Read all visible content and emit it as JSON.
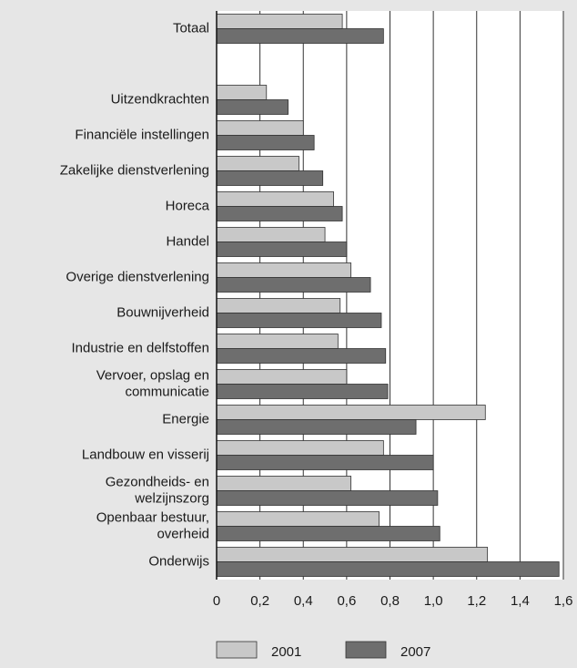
{
  "chart_data": {
    "type": "bar",
    "orientation": "horizontal",
    "categories": [
      "Totaal",
      null,
      "Uitzendkrachten",
      "Financiële instellingen",
      "Zakelijke dienstverlening",
      "Horeca",
      "Handel",
      "Overige dienstverlening",
      "Bouwnijverheid",
      "Industrie en delfstoffen",
      [
        "Vervoer, opslag en",
        "communicatie"
      ],
      "Energie",
      "Landbouw en visserij",
      [
        "Gezondheids- en",
        "welzijnszorg"
      ],
      [
        "Openbaar bestuur,",
        "overheid"
      ],
      "Onderwijs"
    ],
    "series": [
      {
        "name": "2001",
        "color": "#c8c8c8",
        "values": [
          0.58,
          null,
          0.23,
          0.4,
          0.38,
          0.54,
          0.5,
          0.62,
          0.57,
          0.56,
          0.6,
          1.24,
          0.77,
          0.62,
          0.75,
          1.25
        ]
      },
      {
        "name": "2007",
        "color": "#6e6e6e",
        "values": [
          0.77,
          null,
          0.33,
          0.45,
          0.49,
          0.58,
          0.6,
          0.71,
          0.76,
          0.78,
          0.79,
          0.92,
          1.0,
          1.02,
          1.03,
          1.58
        ]
      }
    ],
    "xlim": [
      0,
      1.6
    ],
    "xticks": [
      0,
      {
        "value": 0.2,
        "label": "0,2"
      },
      {
        "value": 0.4,
        "label": "0,4"
      },
      {
        "value": 0.6,
        "label": "0,6"
      },
      {
        "value": 0.8,
        "label": "0,8"
      },
      {
        "value": 1.0,
        "label": "1,0"
      },
      {
        "value": 1.2,
        "label": "1,2"
      },
      {
        "value": 1.4,
        "label": "1,4"
      },
      {
        "value": 1.6,
        "label": "1,6"
      }
    ],
    "grid": true,
    "legend": "bottom"
  }
}
